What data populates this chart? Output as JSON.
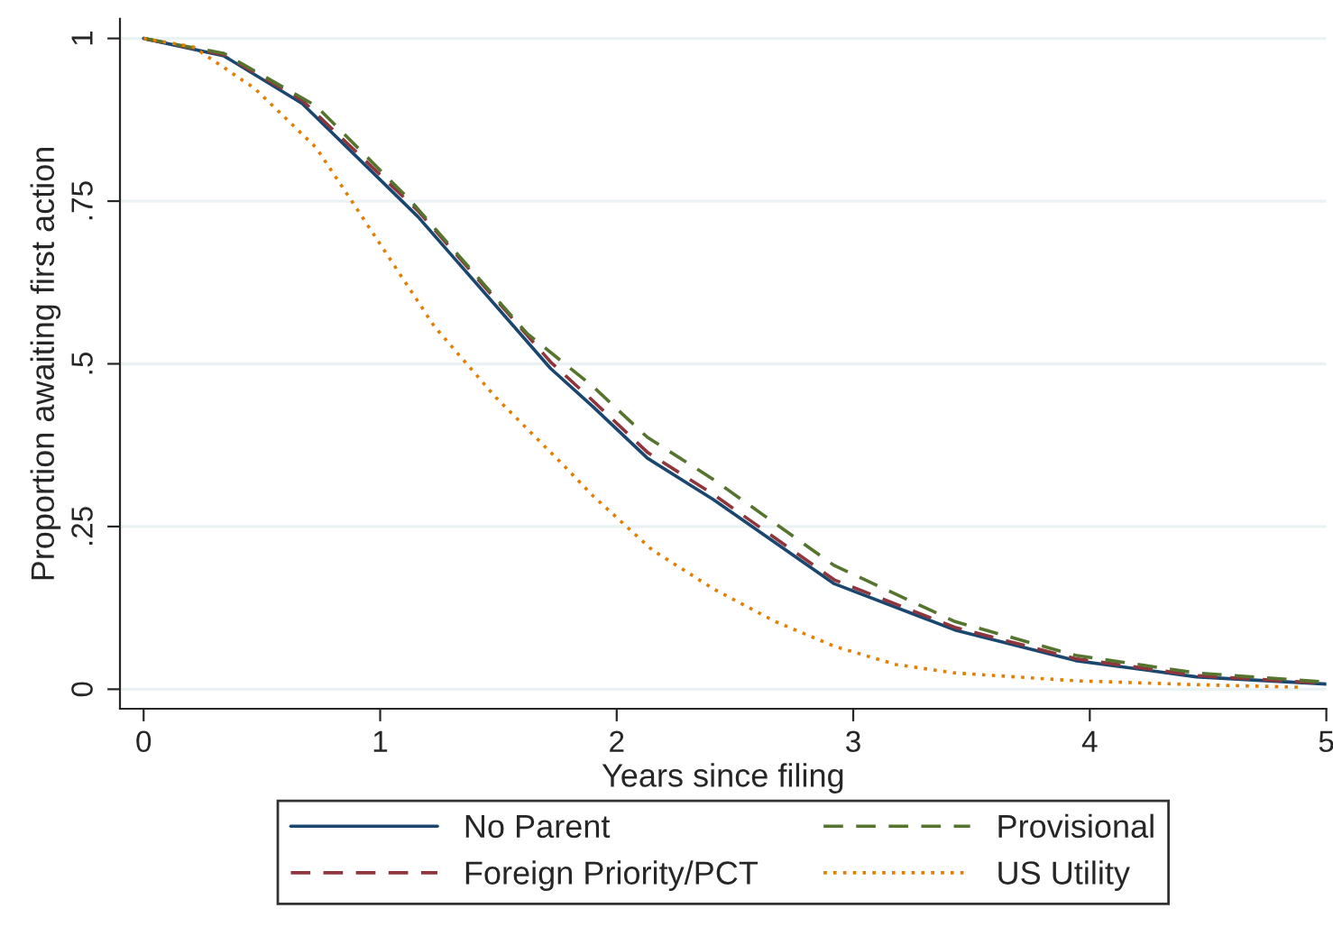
{
  "chart_data": {
    "type": "line",
    "xlabel": "Years since filing",
    "ylabel": "Proportion awaiting first action",
    "xlim": [
      -0.1,
      5
    ],
    "ylim": [
      -0.03,
      1.03
    ],
    "xticks": [
      0,
      1,
      2,
      3,
      4,
      5
    ],
    "yticks": [
      {
        "value": 0,
        "label": "0"
      },
      {
        "value": 0.25,
        "label": ".25"
      },
      {
        "value": 0.5,
        "label": ".5"
      },
      {
        "value": 0.75,
        "label": ".75"
      },
      {
        "value": 1,
        "label": "1"
      }
    ],
    "grid": "y",
    "legend": "bottom",
    "series": [
      {
        "name": "No Parent",
        "color": "#1a476f",
        "line_style": "solid",
        "x": [
          0,
          0.34,
          0.67,
          1.16,
          1.72,
          1.9,
          2.13,
          2.41,
          2.92,
          3.43,
          3.94,
          4.45,
          5
        ],
        "values": [
          1,
          0.973,
          0.9,
          0.726,
          0.493,
          0.434,
          0.355,
          0.291,
          0.162,
          0.091,
          0.044,
          0.019,
          0.008
        ]
      },
      {
        "name": "Foreign Priority/PCT",
        "color": "#90353b",
        "line_style": "dashed",
        "x": [
          0,
          0.34,
          0.67,
          1.16,
          1.72,
          1.9,
          2.13,
          2.41,
          2.92,
          3.43,
          3.94,
          4.45,
          5
        ],
        "values": [
          1,
          0.975,
          0.905,
          0.735,
          0.503,
          0.443,
          0.364,
          0.299,
          0.168,
          0.095,
          0.047,
          0.021,
          0.009
        ]
      },
      {
        "name": "Provisional",
        "color": "#55752f",
        "line_style": "dashed",
        "x": [
          0,
          0.34,
          0.73,
          1.13,
          1.62,
          1.9,
          2.13,
          2.41,
          2.92,
          3.43,
          3.94,
          4.45,
          5
        ],
        "values": [
          1,
          0.977,
          0.896,
          0.75,
          0.547,
          0.465,
          0.387,
          0.322,
          0.19,
          0.104,
          0.052,
          0.025,
          0.011
        ]
      },
      {
        "name": "US Utility",
        "color": "#e37e00",
        "line_style": "dotted",
        "x": [
          0,
          0.21,
          0.47,
          0.73,
          0.98,
          1.23,
          1.49,
          1.77,
          1.9,
          2.15,
          2.41,
          2.67,
          2.92,
          3.18,
          3.43,
          3.94,
          4.45,
          4.9
        ],
        "values": [
          1,
          0.987,
          0.923,
          0.832,
          0.695,
          0.557,
          0.448,
          0.346,
          0.297,
          0.214,
          0.154,
          0.104,
          0.066,
          0.038,
          0.025,
          0.013,
          0.007,
          0.003
        ]
      }
    ]
  }
}
